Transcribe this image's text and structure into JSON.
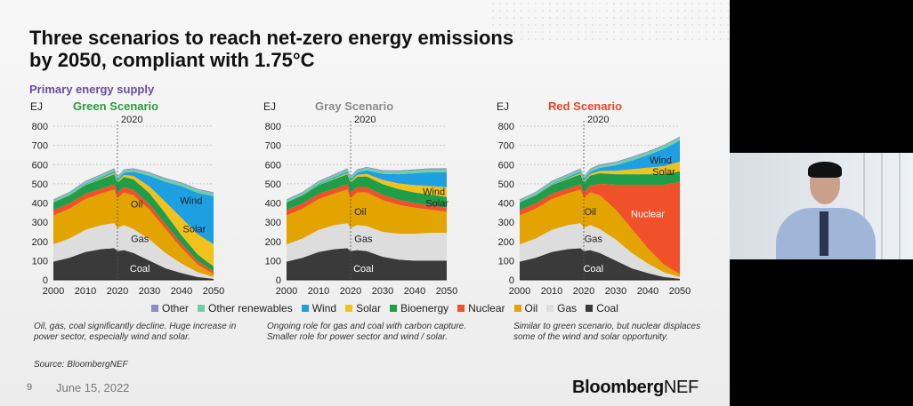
{
  "slide": {
    "title": "Three scenarios to reach net-zero energy emissions by 2050, compliant with 1.75°C",
    "subtitle": "Primary energy supply",
    "unit": "EJ",
    "page_number": "9",
    "date": "June 15, 2022",
    "brand_bold": "Bloomberg",
    "brand_rest": "NEF",
    "source": "Source: BloombergNEF"
  },
  "legend": [
    {
      "label": "Other",
      "color": "#8e8cc4"
    },
    {
      "label": "Other renewables",
      "color": "#6fcfa4"
    },
    {
      "label": "Wind",
      "color": "#1e9fe2"
    },
    {
      "label": "Solar",
      "color": "#f2c21b"
    },
    {
      "label": "Bioenergy",
      "color": "#1f9e49"
    },
    {
      "label": "Nuclear",
      "color": "#f0512a"
    },
    {
      "label": "Oil",
      "color": "#e3a400"
    },
    {
      "label": "Gas",
      "color": "#dddddd"
    },
    {
      "label": "Coal",
      "color": "#3a3a3a"
    }
  ],
  "notes": [
    "Oil, gas, coal significantly decline. Huge increase in power sector, especially wind and solar.",
    "Ongoing role for gas and coal with carbon capture. Smaller role for power sector and wind / solar.",
    "Similar to green scenario, but nuclear displaces some of the wind and solar opportunity."
  ],
  "chart_data": [
    {
      "type": "area",
      "title": "Green Scenario",
      "title_color": "#2e9a3e",
      "ylabel": "EJ",
      "ylim": [
        0,
        800
      ],
      "yticks": [
        0,
        100,
        200,
        300,
        400,
        500,
        600,
        700,
        800
      ],
      "xticks": [
        2000,
        2010,
        2020,
        2030,
        2040,
        2050
      ],
      "marker_label": "2020",
      "marker_x": 2020,
      "x": [
        2000,
        2005,
        2010,
        2015,
        2019,
        2020,
        2022,
        2025,
        2030,
        2035,
        2040,
        2045,
        2050
      ],
      "series": [
        {
          "name": "Coal",
          "values": [
            95,
            115,
            145,
            160,
            165,
            150,
            155,
            140,
            100,
            60,
            35,
            15,
            5
          ]
        },
        {
          "name": "Gas",
          "values": [
            90,
            100,
            115,
            125,
            130,
            120,
            130,
            125,
            110,
            80,
            50,
            25,
            10
          ]
        },
        {
          "name": "Oil",
          "values": [
            150,
            155,
            160,
            165,
            175,
            155,
            170,
            175,
            155,
            125,
            80,
            40,
            15
          ]
        },
        {
          "name": "Nuclear",
          "values": [
            28,
            28,
            28,
            25,
            28,
            28,
            28,
            28,
            28,
            25,
            22,
            18,
            15
          ]
        },
        {
          "name": "Bioenergy",
          "values": [
            40,
            42,
            45,
            50,
            52,
            52,
            53,
            55,
            58,
            55,
            45,
            35,
            25
          ]
        },
        {
          "name": "Solar",
          "values": [
            0,
            1,
            2,
            4,
            6,
            7,
            10,
            18,
            35,
            60,
            90,
            105,
            115
          ]
        },
        {
          "name": "Wind",
          "values": [
            1,
            2,
            4,
            6,
            8,
            9,
            12,
            22,
            55,
            105,
            165,
            215,
            250
          ]
        },
        {
          "name": "Other renewables",
          "values": [
            10,
            10,
            11,
            11,
            12,
            12,
            12,
            13,
            14,
            15,
            15,
            16,
            16
          ]
        },
        {
          "name": "Other",
          "values": [
            5,
            5,
            5,
            5,
            5,
            5,
            5,
            5,
            5,
            5,
            5,
            5,
            5
          ]
        }
      ],
      "labels": [
        {
          "text": "Oil",
          "x": 2026,
          "y": 395,
          "color": "#222"
        },
        {
          "text": "Gas",
          "x": 2027,
          "y": 215,
          "color": "#222"
        },
        {
          "text": "Coal",
          "x": 2027,
          "y": 60,
          "color": "#fff"
        },
        {
          "text": "Solar",
          "x": 2044,
          "y": 265,
          "color": "#222"
        },
        {
          "text": "Wind",
          "x": 2043,
          "y": 415,
          "color": "#222"
        }
      ]
    },
    {
      "type": "area",
      "title": "Gray Scenario",
      "title_color": "#8a8a8a",
      "ylabel": "EJ",
      "ylim": [
        0,
        800
      ],
      "yticks": [
        0,
        100,
        200,
        300,
        400,
        500,
        600,
        700,
        800
      ],
      "xticks": [
        2000,
        2010,
        2020,
        2030,
        2040,
        2050
      ],
      "marker_label": "2020",
      "marker_x": 2020,
      "x": [
        2000,
        2005,
        2010,
        2015,
        2019,
        2020,
        2022,
        2025,
        2030,
        2035,
        2040,
        2045,
        2050
      ],
      "series": [
        {
          "name": "Coal",
          "values": [
            95,
            115,
            145,
            160,
            165,
            150,
            155,
            150,
            120,
            105,
            100,
            100,
            100
          ]
        },
        {
          "name": "Gas",
          "values": [
            90,
            100,
            115,
            125,
            130,
            120,
            130,
            130,
            130,
            135,
            140,
            145,
            145
          ]
        },
        {
          "name": "Oil",
          "values": [
            150,
            155,
            160,
            165,
            175,
            155,
            170,
            175,
            165,
            150,
            135,
            120,
            110
          ]
        },
        {
          "name": "Nuclear",
          "values": [
            28,
            28,
            28,
            25,
            28,
            28,
            28,
            28,
            28,
            27,
            25,
            23,
            22
          ]
        },
        {
          "name": "Bioenergy",
          "values": [
            40,
            42,
            45,
            50,
            52,
            52,
            53,
            55,
            55,
            55,
            55,
            55,
            55
          ]
        },
        {
          "name": "Solar",
          "values": [
            0,
            1,
            2,
            4,
            6,
            7,
            10,
            14,
            22,
            30,
            38,
            45,
            50
          ]
        },
        {
          "name": "Wind",
          "values": [
            1,
            2,
            4,
            6,
            8,
            9,
            12,
            18,
            32,
            48,
            62,
            72,
            78
          ]
        },
        {
          "name": "Other renewables",
          "values": [
            10,
            10,
            11,
            11,
            12,
            12,
            12,
            13,
            14,
            15,
            15,
            16,
            16
          ]
        },
        {
          "name": "Other",
          "values": [
            5,
            5,
            5,
            5,
            5,
            5,
            5,
            5,
            5,
            5,
            5,
            5,
            5
          ]
        }
      ],
      "labels": [
        {
          "text": "Oil",
          "x": 2023,
          "y": 355,
          "color": "#222"
        },
        {
          "text": "Gas",
          "x": 2024,
          "y": 215,
          "color": "#222"
        },
        {
          "text": "Coal",
          "x": 2024,
          "y": 60,
          "color": "#fff"
        },
        {
          "text": "Solar",
          "x": 2047,
          "y": 400,
          "color": "#222"
        },
        {
          "text": "Wind",
          "x": 2046,
          "y": 460,
          "color": "#222"
        }
      ]
    },
    {
      "type": "area",
      "title": "Red Scenario",
      "title_color": "#e8452a",
      "ylabel": "EJ",
      "ylim": [
        0,
        800
      ],
      "yticks": [
        0,
        100,
        200,
        300,
        400,
        500,
        600,
        700,
        800
      ],
      "xticks": [
        2000,
        2010,
        2020,
        2030,
        2040,
        2050
      ],
      "marker_label": "2020",
      "marker_x": 2020,
      "x": [
        2000,
        2005,
        2010,
        2015,
        2019,
        2020,
        2022,
        2025,
        2030,
        2035,
        2040,
        2045,
        2050
      ],
      "series": [
        {
          "name": "Coal",
          "values": [
            95,
            115,
            145,
            160,
            165,
            150,
            155,
            140,
            100,
            60,
            35,
            15,
            5
          ]
        },
        {
          "name": "Gas",
          "values": [
            90,
            100,
            115,
            125,
            130,
            120,
            130,
            125,
            110,
            80,
            50,
            25,
            10
          ]
        },
        {
          "name": "Oil",
          "values": [
            150,
            155,
            160,
            165,
            175,
            155,
            170,
            175,
            155,
            125,
            80,
            40,
            15
          ]
        },
        {
          "name": "Nuclear",
          "values": [
            28,
            28,
            28,
            25,
            28,
            28,
            35,
            60,
            130,
            230,
            330,
            415,
            480
          ]
        },
        {
          "name": "Bioenergy",
          "values": [
            40,
            42,
            45,
            50,
            52,
            52,
            53,
            55,
            55,
            55,
            55,
            55,
            55
          ]
        },
        {
          "name": "Solar",
          "values": [
            0,
            1,
            2,
            4,
            6,
            7,
            8,
            12,
            18,
            26,
            34,
            42,
            50
          ]
        },
        {
          "name": "Wind",
          "values": [
            1,
            2,
            4,
            6,
            8,
            9,
            11,
            16,
            28,
            45,
            65,
            90,
            110
          ]
        },
        {
          "name": "Other renewables",
          "values": [
            10,
            10,
            11,
            11,
            12,
            12,
            12,
            13,
            14,
            15,
            15,
            16,
            16
          ]
        },
        {
          "name": "Other",
          "values": [
            5,
            5,
            5,
            5,
            5,
            5,
            5,
            5,
            5,
            5,
            5,
            5,
            5
          ]
        }
      ],
      "labels": [
        {
          "text": "Oil",
          "x": 2022,
          "y": 355,
          "color": "#222"
        },
        {
          "text": "Gas",
          "x": 2023,
          "y": 215,
          "color": "#222"
        },
        {
          "text": "Coal",
          "x": 2023,
          "y": 60,
          "color": "#fff"
        },
        {
          "text": "Nuclear",
          "x": 2040,
          "y": 345,
          "color": "#fff"
        },
        {
          "text": "Solar",
          "x": 2045,
          "y": 565,
          "color": "#222"
        },
        {
          "text": "Wind",
          "x": 2044,
          "y": 625,
          "color": "#222"
        }
      ]
    }
  ]
}
